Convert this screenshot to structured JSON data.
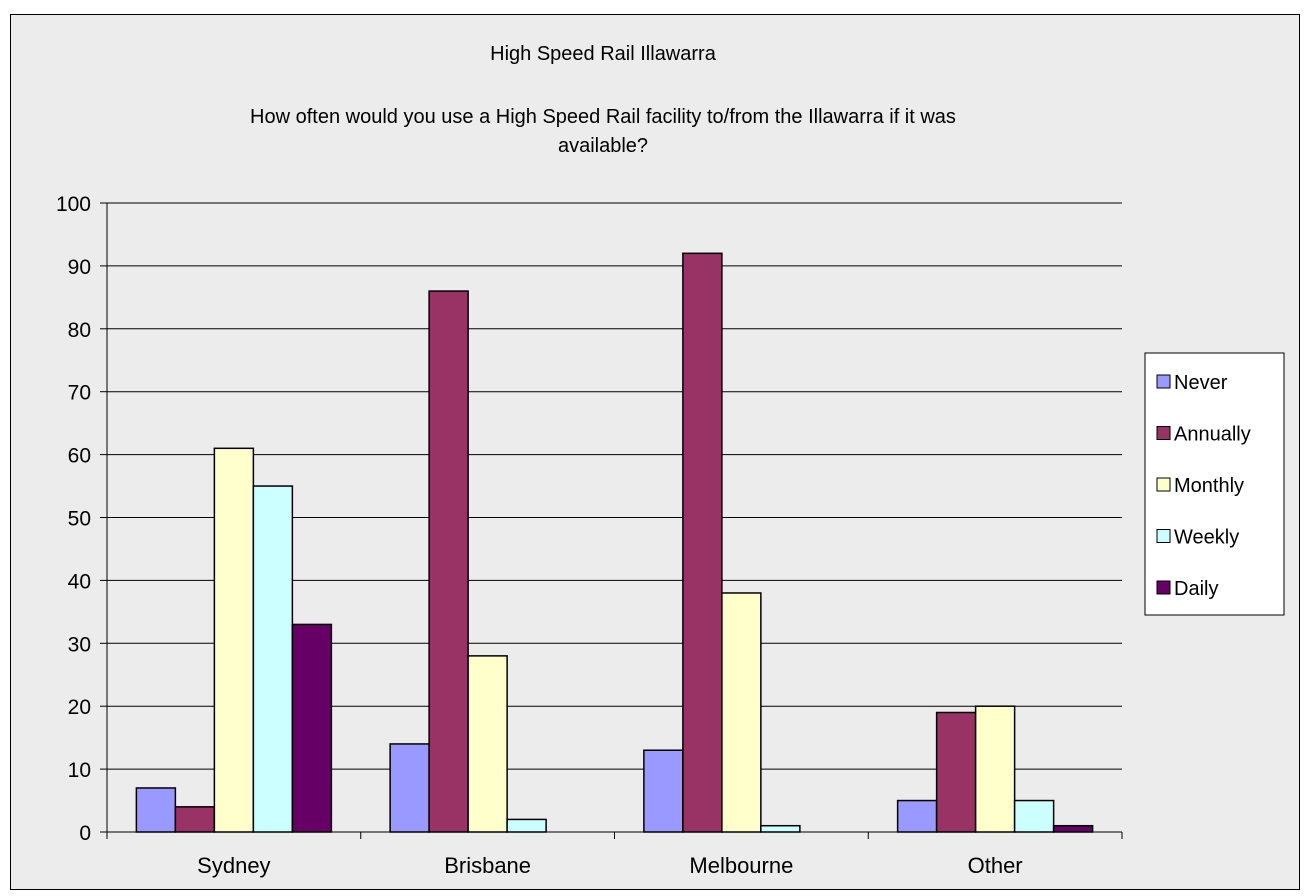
{
  "chart_data": {
    "type": "bar",
    "title": "High Speed Rail Illawarra",
    "subtitle_lines": [
      "How often would you use a High Speed Rail facility to/from the Illawarra if it was",
      "available?"
    ],
    "categories": [
      "Sydney",
      "Brisbane",
      "Melbourne",
      "Other"
    ],
    "series": [
      {
        "name": "Never",
        "color": "#9999ff",
        "values": [
          7,
          14,
          13,
          5
        ]
      },
      {
        "name": "Annually",
        "color": "#993366",
        "values": [
          4,
          86,
          92,
          19
        ]
      },
      {
        "name": "Monthly",
        "color": "#ffffcc",
        "values": [
          61,
          28,
          38,
          20
        ]
      },
      {
        "name": "Weekly",
        "color": "#ccffff",
        "values": [
          55,
          2,
          1,
          5
        ]
      },
      {
        "name": "Daily",
        "color": "#660066",
        "values": [
          33,
          0,
          0,
          1
        ]
      }
    ],
    "ylim": [
      0,
      100
    ],
    "yticks": [
      "0",
      "10",
      "20",
      "30",
      "40",
      "50",
      "60",
      "70",
      "80",
      "90",
      "100"
    ],
    "grid": true,
    "legend_position": "right"
  }
}
